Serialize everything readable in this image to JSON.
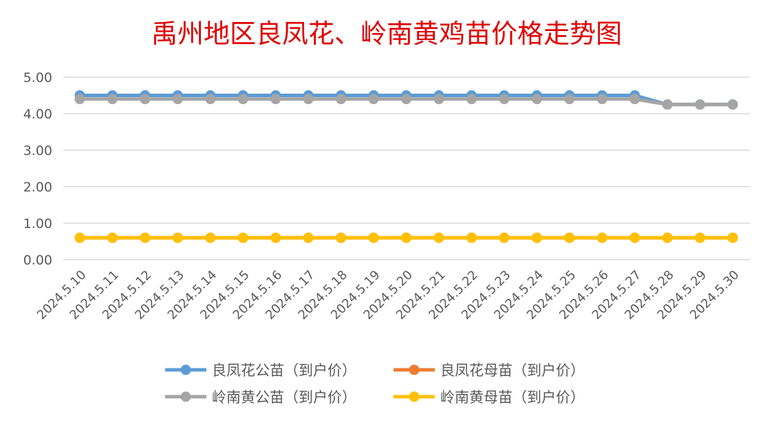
{
  "chart_data": {
    "type": "line",
    "title": "禹州地区良凤花、岭南黄鸡苗价格走势图",
    "xlabel": "",
    "ylabel": "",
    "ylim": [
      0,
      5
    ],
    "yticks": [
      "0.00",
      "1.00",
      "2.00",
      "3.00",
      "4.00",
      "5.00"
    ],
    "grid": true,
    "legend_position": "bottom",
    "x": [
      "2024.5.10",
      "2024.5.11",
      "2024.5.12",
      "2024.5.13",
      "2024.5.14",
      "2024.5.15",
      "2024.5.16",
      "2024.5.17",
      "2024.5.18",
      "2024.5.19",
      "2024.5.20",
      "2024.5.21",
      "2024.5.22",
      "2024.5.23",
      "2024.5.24",
      "2024.5.25",
      "2024.5.26",
      "2024.5.27",
      "2024.5.28",
      "2024.5.29",
      "2024.5.30"
    ],
    "series": [
      {
        "name": "良凤花公苗（到户价）",
        "color": "#5b9bd5",
        "values": [
          4.5,
          4.5,
          4.5,
          4.5,
          4.5,
          4.5,
          4.5,
          4.5,
          4.5,
          4.5,
          4.5,
          4.5,
          4.5,
          4.5,
          4.5,
          4.5,
          4.5,
          4.5,
          4.25,
          4.25,
          4.25
        ]
      },
      {
        "name": "良凤花母苗（到户价）",
        "color": "#ed7d31",
        "values": [
          0.6,
          0.6,
          0.6,
          0.6,
          0.6,
          0.6,
          0.6,
          0.6,
          0.6,
          0.6,
          0.6,
          0.6,
          0.6,
          0.6,
          0.6,
          0.6,
          0.6,
          0.6,
          0.6,
          0.6,
          0.6
        ]
      },
      {
        "name": "岭南黄公苗（到户价）",
        "color": "#a5a5a5",
        "values": [
          4.4,
          4.4,
          4.4,
          4.4,
          4.4,
          4.4,
          4.4,
          4.4,
          4.4,
          4.4,
          4.4,
          4.4,
          4.4,
          4.4,
          4.4,
          4.4,
          4.4,
          4.4,
          4.25,
          4.25,
          4.25
        ]
      },
      {
        "name": "岭南黄母苗（到户价）",
        "color": "#ffc000",
        "values": [
          0.6,
          0.6,
          0.6,
          0.6,
          0.6,
          0.6,
          0.6,
          0.6,
          0.6,
          0.6,
          0.6,
          0.6,
          0.6,
          0.6,
          0.6,
          0.6,
          0.6,
          0.6,
          0.6,
          0.6,
          0.6
        ]
      }
    ]
  }
}
